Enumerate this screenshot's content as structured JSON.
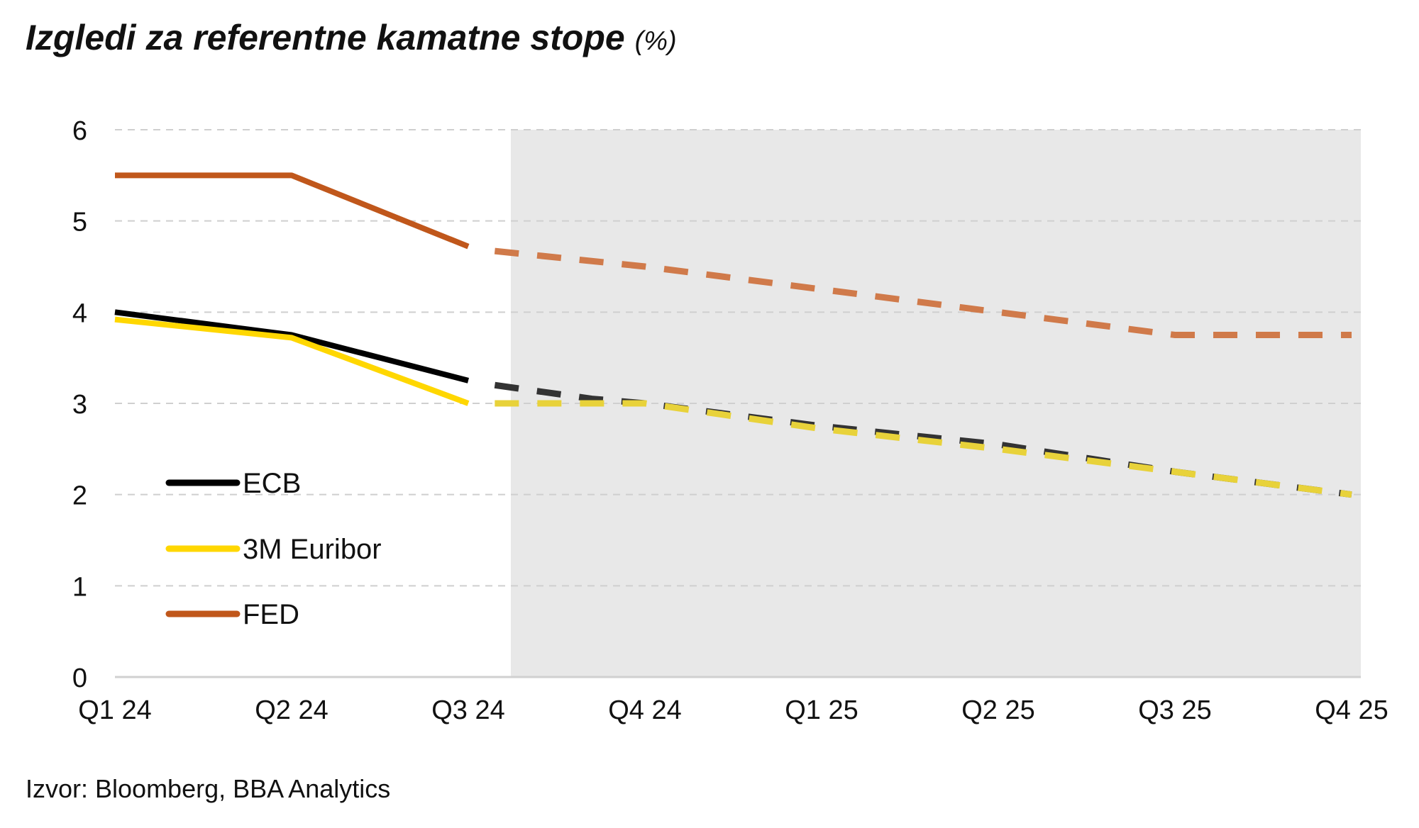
{
  "title": "Izgledi za referentne kamatne stope",
  "title_unit": "(%)",
  "source": "Izvor: Bloomberg, BBA Analytics",
  "chart_data": {
    "type": "line",
    "title": "Izgledi za referentne kamatne stope",
    "unit": "%",
    "categories": [
      "Q1 24",
      "Q2 24",
      "Q3 24",
      "Q4 24",
      "Q1 25",
      "Q2 25",
      "Q3 25",
      "Q4 25"
    ],
    "yticks": [
      "0",
      "1",
      "2",
      "3",
      "4",
      "5",
      "6"
    ],
    "ylim": [
      0,
      6
    ],
    "grid": "horizontal dashed",
    "forecast_shading_from": "Q3 24",
    "actual_until": "Q3 24",
    "legend_position": "bottom-left",
    "series": [
      {
        "name": "ECB",
        "color": "#000000",
        "forecast_color": "#333333",
        "values": [
          4.0,
          3.75,
          3.25,
          3.0,
          2.75,
          2.5,
          2.25,
          2.0
        ],
        "forecast_x": [
          2.15,
          2.7,
          3.0,
          4.0,
          5.0,
          6.0,
          7.0
        ],
        "forecast_y": [
          3.2,
          3.05,
          3.0,
          2.75,
          2.55,
          2.25,
          2.0
        ]
      },
      {
        "name": "3M Euribor",
        "color": "#FFD700",
        "forecast_color": "#E8D23A",
        "values": [
          3.92,
          3.72,
          3.0,
          3.0,
          2.72,
          2.5,
          2.25,
          2.0
        ],
        "forecast_x": [
          2.15,
          3.0,
          4.0,
          5.0,
          6.0,
          7.0
        ],
        "forecast_y": [
          3.0,
          3.0,
          2.72,
          2.5,
          2.25,
          2.0
        ]
      },
      {
        "name": "FED",
        "color": "#C0571B",
        "forecast_color": "#D07A4A",
        "values": [
          5.5,
          5.5,
          4.72,
          4.5,
          4.25,
          4.0,
          3.75,
          3.75
        ],
        "forecast_x": [
          2.15,
          3.0,
          4.0,
          5.0,
          6.0,
          7.0
        ],
        "forecast_y": [
          4.67,
          4.5,
          4.25,
          4.0,
          3.75,
          3.75
        ]
      }
    ]
  }
}
